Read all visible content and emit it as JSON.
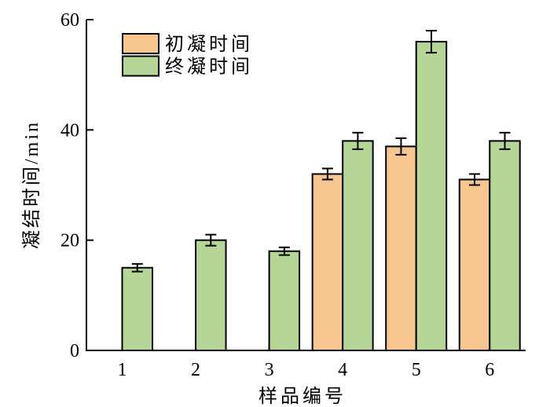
{
  "chart_data": {
    "type": "bar",
    "title": "",
    "categories": [
      "1",
      "2",
      "3",
      "4",
      "5",
      "6"
    ],
    "series": [
      {
        "name": "初凝时间",
        "color": "#F7C58F",
        "values": [
          null,
          null,
          null,
          32,
          37,
          31
        ],
        "errors": [
          null,
          null,
          null,
          1,
          1.5,
          1
        ]
      },
      {
        "name": "终凝时间",
        "color": "#B5D696",
        "values": [
          15,
          20,
          18,
          38,
          56,
          38
        ],
        "errors": [
          0.7,
          1,
          0.7,
          1.5,
          2,
          1.5
        ]
      }
    ],
    "xlabel": "样品编号",
    "ylabel": "凝结时间/min",
    "ylim": [
      0,
      60
    ],
    "yticks": [
      0,
      20,
      40,
      60
    ],
    "legend_position": "upper-left",
    "grid": false,
    "axis_color": "#000000",
    "error_bar_color": "#000000"
  }
}
